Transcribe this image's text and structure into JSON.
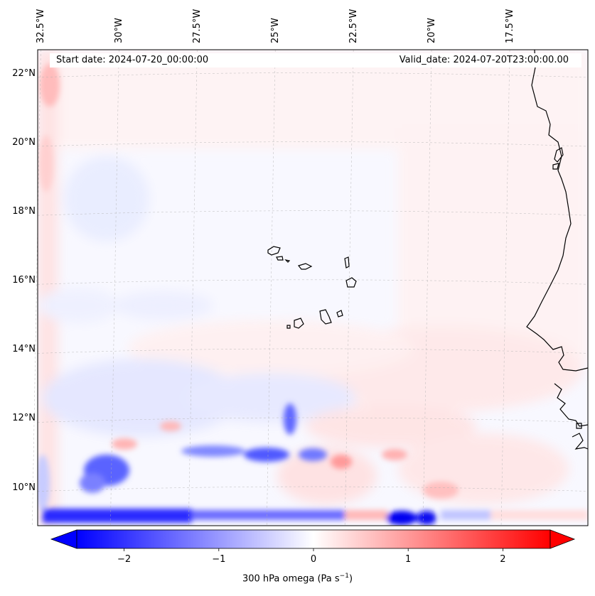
{
  "map": {
    "start_date_text": "Start date: 2024-07-20_00:00:00",
    "valid_date_text": "Valid_date: 2024-07-20T23:00:00.00",
    "lon_labels": [
      "32.5°W",
      "30°W",
      "27.5°W",
      "25°W",
      "22.5°W",
      "20°W",
      "17.5°W"
    ],
    "lat_labels": [
      "22°N",
      "20°N",
      "18°N",
      "16°N",
      "14°N",
      "12°N",
      "10°N"
    ],
    "lon_values": [
      -32.5,
      -30,
      -27.5,
      -25,
      -22.5,
      -20,
      -17.5
    ],
    "lat_values": [
      22,
      20,
      18,
      16,
      14,
      12,
      10
    ],
    "lon_range": [
      -32.6,
      -15.0
    ],
    "lat_range": [
      8.9,
      22.7
    ],
    "field": "300 hPa omega",
    "coast_color": "#000000",
    "grid_color": "#b0b0b0"
  },
  "colorbar": {
    "label_main": "300 hPa omega (Pa s",
    "label_sup": "−1",
    "label_end": ")",
    "range": [
      -2.5,
      2.5
    ],
    "ticks": [
      {
        "value": -2,
        "label": "−2"
      },
      {
        "value": -1,
        "label": "−1"
      },
      {
        "value": 0,
        "label": "0"
      },
      {
        "value": 1,
        "label": "1"
      },
      {
        "value": 2,
        "label": "2"
      }
    ],
    "color_min": "#0000ff",
    "color_mid": "#ffffff",
    "color_max": "#ff0000"
  }
}
